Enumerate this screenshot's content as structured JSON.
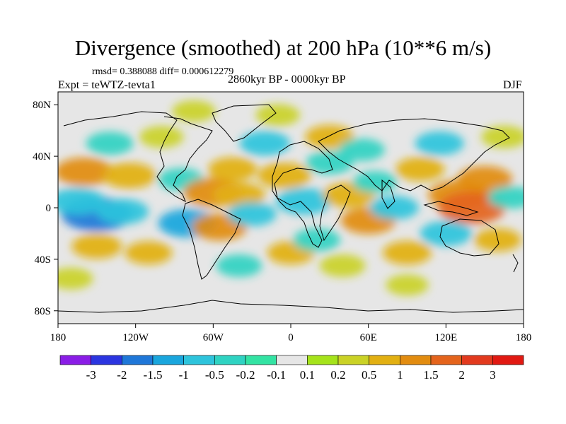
{
  "title": "Divergence (smoothed) at 200 hPa (10**6 m/s)",
  "stats": "rmsd= 0.388088 diff= 0.000612279",
  "subtitle": {
    "left": "Expt = teWTZ-tevta1",
    "center": "2860kyr BP - 0000kyr BP",
    "right": "DJF"
  },
  "lat_labels": [
    "80N",
    "40N",
    "0",
    "40S",
    "80S"
  ],
  "lon_labels": [
    "180",
    "120W",
    "60W",
    "0",
    "60E",
    "120E",
    "180"
  ],
  "colorbar": {
    "labels": [
      "-3",
      "-2",
      "-1.5",
      "-1",
      "-0.5",
      "-0.2",
      "-0.1",
      "0.1",
      "0.2",
      "0.5",
      "1",
      "1.5",
      "2",
      "3"
    ],
    "colors": [
      "#8a1de6",
      "#2b35e0",
      "#1f77d8",
      "#1aa6dd",
      "#2ec4dc",
      "#2fd3c2",
      "#33e3a3",
      "#e6e6e6",
      "#a5e31b",
      "#cad226",
      "#e2b012",
      "#e28c10",
      "#e4641c",
      "#e23a1e",
      "#e11912"
    ]
  },
  "chart_data": {
    "type": "heatmap",
    "title": "Divergence (smoothed) at 200 hPa (10**6 m/s)",
    "variable": "Divergence (smoothed)",
    "level": "200 hPa",
    "units": "10**6 m/s",
    "season": "DJF",
    "experiment": "teWTZ-tevta1",
    "period": "2860kyr BP - 0000kyr BP",
    "rmsd": 0.388088,
    "diff": 0.000612279,
    "lon_range": [
      -180,
      180
    ],
    "lat_range": [
      -90,
      90
    ],
    "contour_levels": [
      -3,
      -2,
      -1.5,
      -1,
      -0.5,
      -0.2,
      -0.1,
      0.1,
      0.2,
      0.5,
      1,
      1.5,
      2,
      3
    ],
    "blobs": [
      {
        "lon": -150,
        "lat": -5,
        "value": -2.0
      },
      {
        "lon": -165,
        "lat": 5,
        "value": -1.0
      },
      {
        "lon": -130,
        "lat": -3,
        "value": -0.8
      },
      {
        "lon": -160,
        "lat": 28,
        "value": 1.2
      },
      {
        "lon": -125,
        "lat": 25,
        "value": 0.9
      },
      {
        "lon": -140,
        "lat": 50,
        "value": -0.5
      },
      {
        "lon": -100,
        "lat": 55,
        "value": 0.3
      },
      {
        "lon": -75,
        "lat": 75,
        "value": 0.25
      },
      {
        "lon": -85,
        "lat": 22,
        "value": -0.4
      },
      {
        "lon": -60,
        "lat": 12,
        "value": 1.3
      },
      {
        "lon": -40,
        "lat": 10,
        "value": 0.8
      },
      {
        "lon": -80,
        "lat": -12,
        "value": -1.2
      },
      {
        "lon": -55,
        "lat": -15,
        "value": 1.0
      },
      {
        "lon": -30,
        "lat": -5,
        "value": -0.6
      },
      {
        "lon": -45,
        "lat": 30,
        "value": 0.6
      },
      {
        "lon": -20,
        "lat": 50,
        "value": -0.7
      },
      {
        "lon": -10,
        "lat": 72,
        "value": 0.3
      },
      {
        "lon": -5,
        "lat": 25,
        "value": 0.9
      },
      {
        "lon": 10,
        "lat": 5,
        "value": -1.0
      },
      {
        "lon": 30,
        "lat": 35,
        "value": -0.5
      },
      {
        "lon": 30,
        "lat": 55,
        "value": 0.6
      },
      {
        "lon": 55,
        "lat": 45,
        "value": -0.4
      },
      {
        "lon": 0,
        "lat": -35,
        "value": 0.5
      },
      {
        "lon": 20,
        "lat": -25,
        "value": -0.5
      },
      {
        "lon": 45,
        "lat": 10,
        "value": 0.8
      },
      {
        "lon": 60,
        "lat": -10,
        "value": 1.0
      },
      {
        "lon": 65,
        "lat": 20,
        "value": -0.3
      },
      {
        "lon": 80,
        "lat": 0,
        "value": -0.6
      },
      {
        "lon": 100,
        "lat": 30,
        "value": 0.6
      },
      {
        "lon": 115,
        "lat": 50,
        "value": -0.6
      },
      {
        "lon": 130,
        "lat": 10,
        "value": 1.4
      },
      {
        "lon": 140,
        "lat": 0,
        "value": 1.8
      },
      {
        "lon": 150,
        "lat": 22,
        "value": 1.0
      },
      {
        "lon": 120,
        "lat": -20,
        "value": -0.8
      },
      {
        "lon": 160,
        "lat": -25,
        "value": 0.5
      },
      {
        "lon": 170,
        "lat": 8,
        "value": -0.4
      },
      {
        "lon": 165,
        "lat": 55,
        "value": 0.4
      },
      {
        "lon": 90,
        "lat": -35,
        "value": 0.6
      },
      {
        "lon": -110,
        "lat": -35,
        "value": 0.5
      },
      {
        "lon": -150,
        "lat": -30,
        "value": 0.7
      },
      {
        "lon": -40,
        "lat": -45,
        "value": -0.4
      },
      {
        "lon": 40,
        "lat": -45,
        "value": 0.4
      },
      {
        "lon": -170,
        "lat": -55,
        "value": 0.3
      },
      {
        "lon": 90,
        "lat": -60,
        "value": 0.2
      }
    ]
  }
}
